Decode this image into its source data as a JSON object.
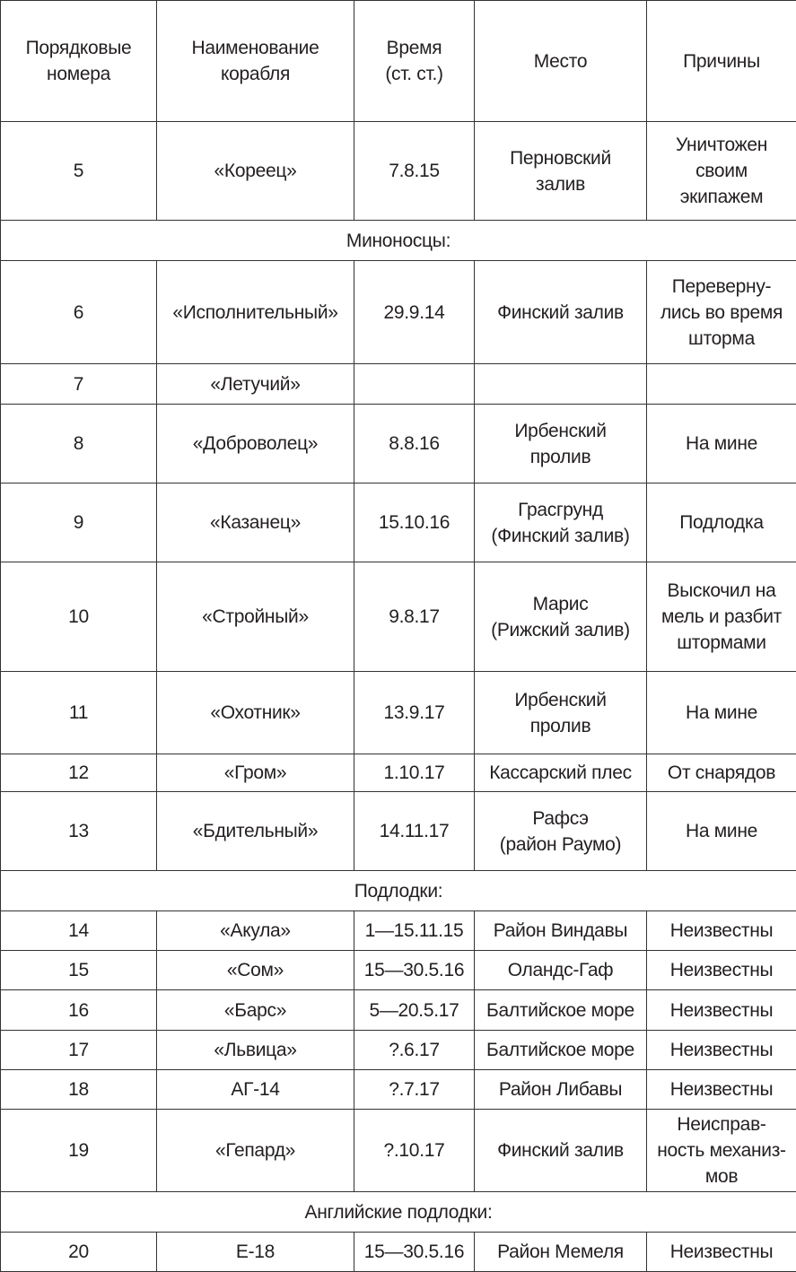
{
  "table": {
    "headers": [
      "Порядковые\nномера",
      "Наименование\nкорабля",
      "Время\n(ст. ст.)",
      "Место",
      "Причины"
    ],
    "rows": [
      {
        "cells": [
          "5",
          "«Кореец»",
          "7.8.15",
          "Перновский\nзалив",
          "Уничтожен\nсвоим\nэкипажем"
        ]
      },
      {
        "section": "Миноносцы:"
      },
      {
        "cells": [
          "6",
          "«Исполнительный»",
          "29.9.14",
          "Финский залив",
          "Переверну-\nлись во время\nшторма"
        ]
      },
      {
        "cells": [
          "7",
          "«Летучий»",
          "",
          "",
          ""
        ]
      },
      {
        "cells": [
          "8",
          "«Доброволец»",
          "8.8.16",
          "Ирбенский\nпролив",
          "На мине"
        ]
      },
      {
        "cells": [
          "9",
          "«Казанец»",
          "15.10.16",
          "Грасгрунд\n(Финский залив)",
          "Подлодка"
        ]
      },
      {
        "cells": [
          "10",
          "«Стройный»",
          "9.8.17",
          "Марис\n(Рижский залив)",
          "Выскочил на\nмель и разбит\nштормами"
        ]
      },
      {
        "cells": [
          "11",
          "«Охотник»",
          "13.9.17",
          "Ирбенский\nпролив",
          "На мине"
        ]
      },
      {
        "cells": [
          "12",
          "«Гром»",
          "1.10.17",
          "Кассарский плес",
          "От снарядов"
        ]
      },
      {
        "cells": [
          "13",
          "«Бдительный»",
          "14.11.17",
          "Рафсэ\n(район Раумо)",
          "На мине"
        ]
      },
      {
        "section": "Подлодки:"
      },
      {
        "cells": [
          "14",
          "«Акула»",
          "1—15.11.15",
          "Район Виндавы",
          "Неизвестны"
        ]
      },
      {
        "cells": [
          "15",
          "«Сом»",
          "15—30.5.16",
          "Оландс-Гаф",
          "Неизвестны"
        ]
      },
      {
        "cells": [
          "16",
          "«Барс»",
          "5—20.5.17",
          "Балтийское море",
          "Неизвестны"
        ]
      },
      {
        "cells": [
          "17",
          "«Львица»",
          "?.6.17",
          "Балтийское море",
          "Неизвестны"
        ]
      },
      {
        "cells": [
          "18",
          "АГ-14",
          "?.7.17",
          "Район Либавы",
          "Неизвестны"
        ]
      },
      {
        "cells": [
          "19",
          "«Гепард»",
          "?.10.17",
          "Финский залив",
          "Неисправ-\nность механиз-\nмов"
        ]
      },
      {
        "section": "Английские подлодки:"
      },
      {
        "cells": [
          "20",
          "Е-18",
          "15—30.5.16",
          "Район Мемеля",
          "Неизвестны"
        ]
      }
    ]
  }
}
